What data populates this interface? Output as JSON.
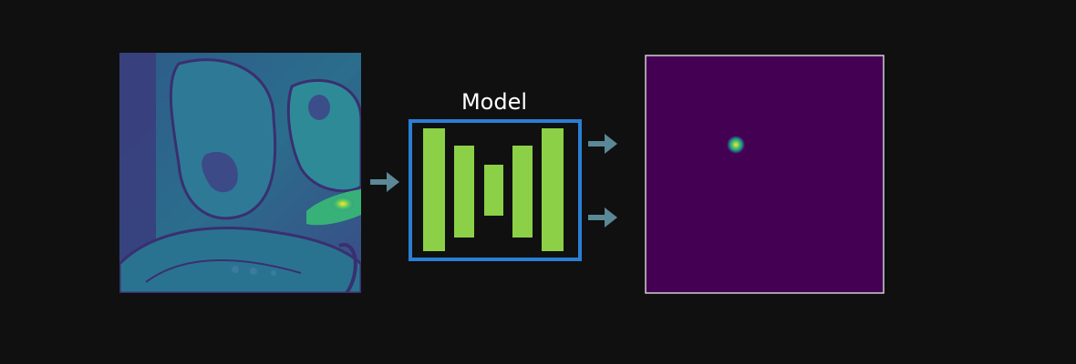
{
  "diagram": {
    "model_label": "Model",
    "colors": {
      "background": "#101010",
      "model_border": "#2a7fd4",
      "model_layers": "#8cd047",
      "arrows": "#5b8896",
      "heatmap_background": "#440154",
      "heatmap_border": "#cfcfcf",
      "heatmap_peak": "#fde725"
    },
    "input_image": {
      "description_icon": "mri-slice-image"
    },
    "output_image": {
      "description_icon": "heatmap-image"
    }
  }
}
